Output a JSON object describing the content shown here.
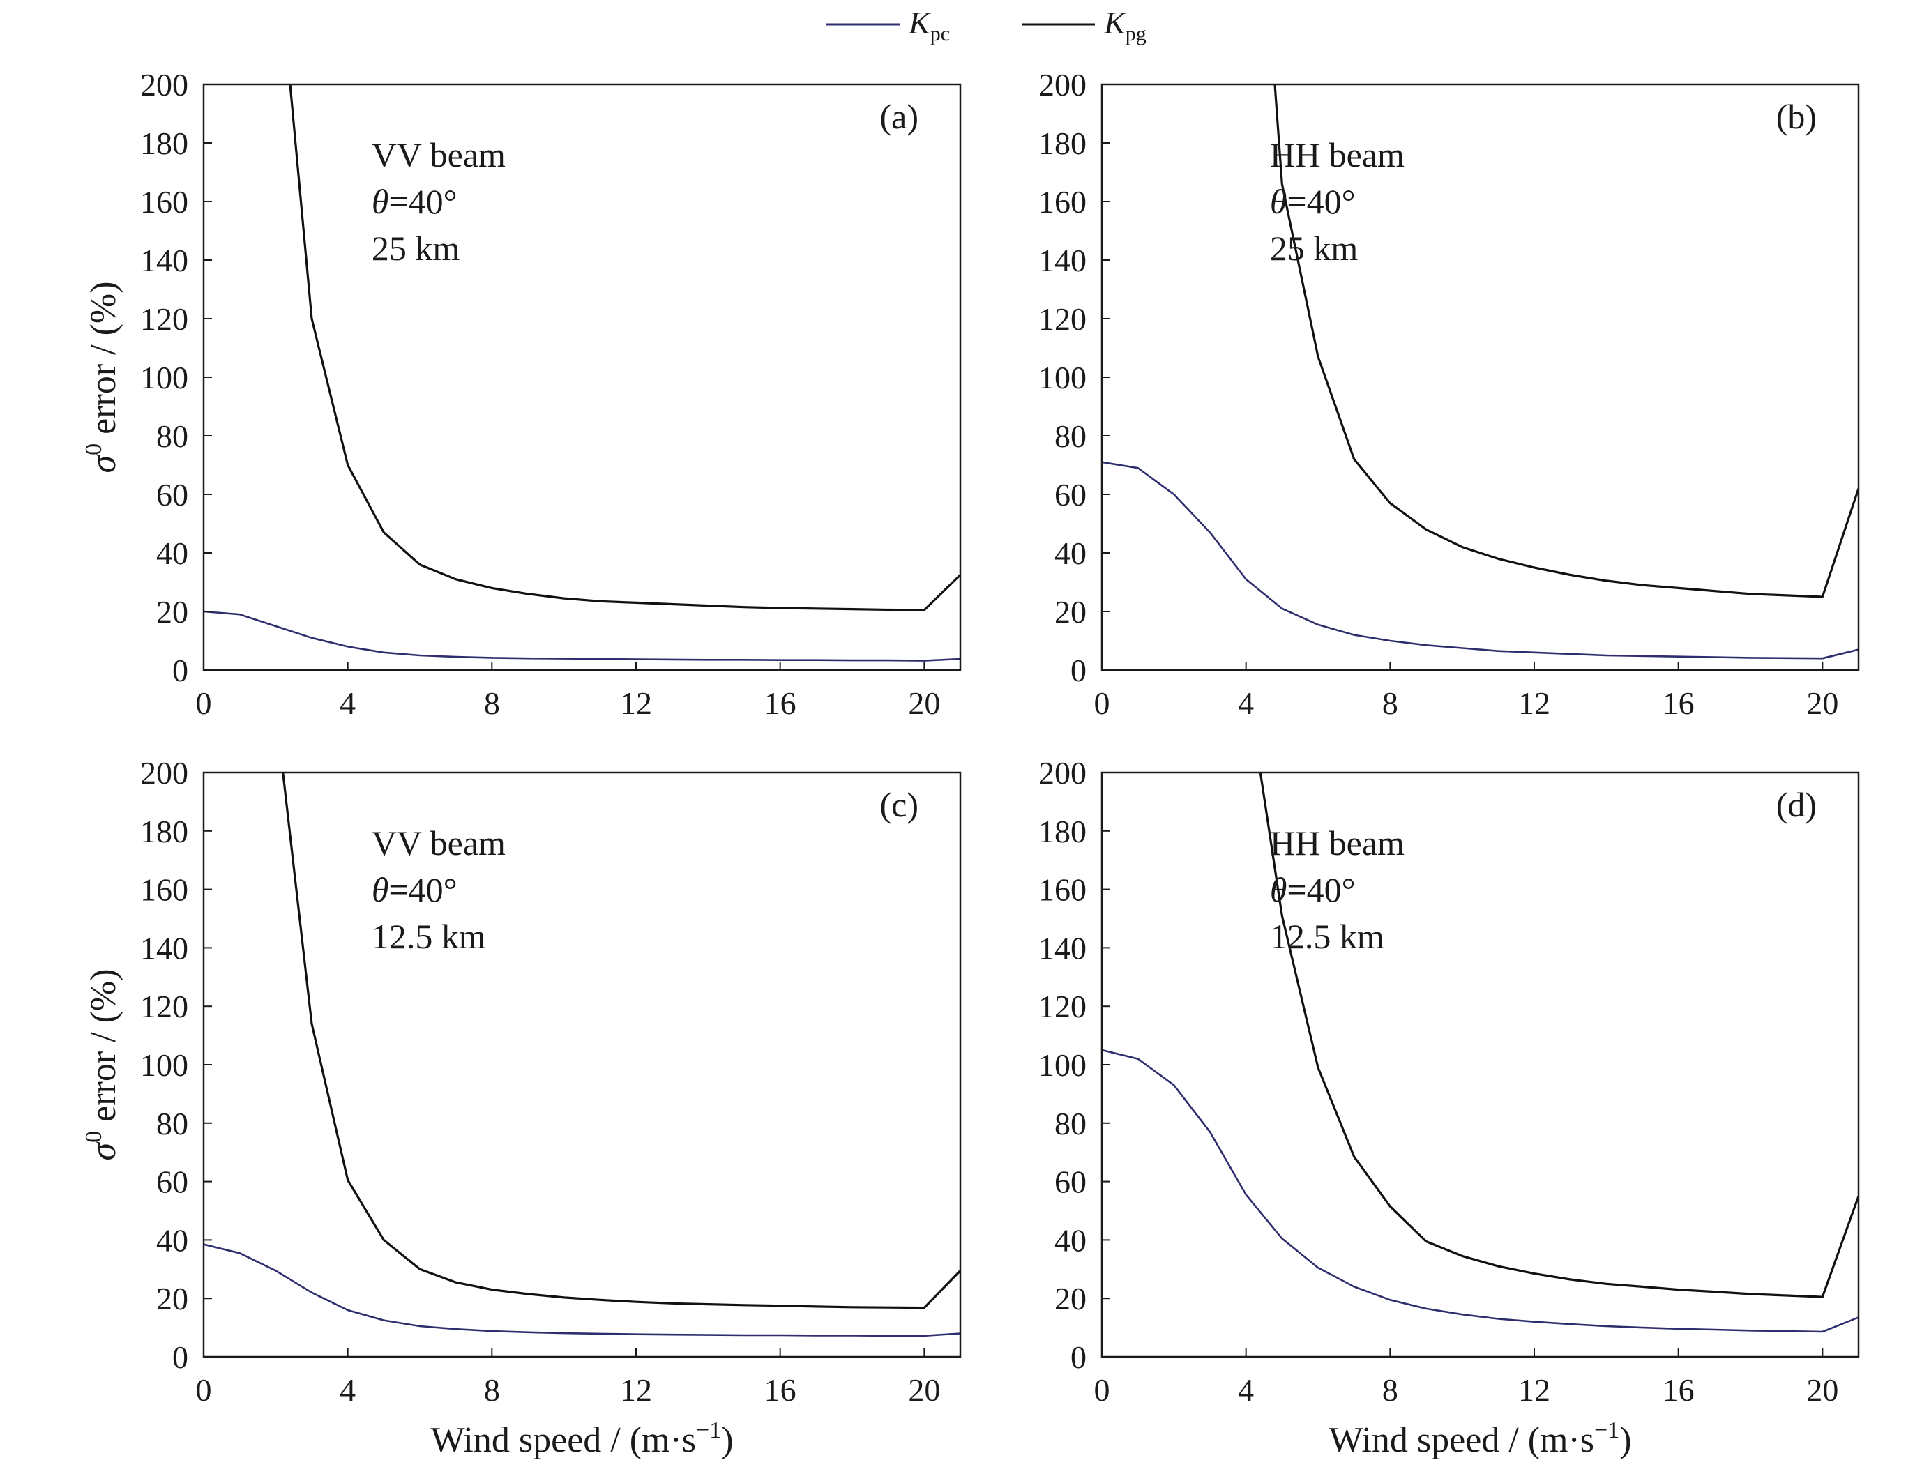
{
  "legend": [
    {
      "base": "K",
      "sub": "pc",
      "color": "#2e2e6e"
    },
    {
      "base": "K",
      "sub": "pg",
      "color": "#111111"
    }
  ],
  "axis_text": {
    "ylabel_sigma": "σ",
    "ylabel_sup": "0",
    "ylabel_rest": " error / (%)",
    "xlabel_main": "Wind speed / (m·s",
    "xlabel_sup": "−1",
    "xlabel_close": ")"
  },
  "chart_data": [
    {
      "type": "line",
      "panel_label": "(a)",
      "annotation": [
        "VV beam",
        "θ=40°",
        "25 km"
      ],
      "xlabel": "",
      "ylabel": "σ0 error / (%)",
      "xlim": [
        0,
        21
      ],
      "ylim": [
        0,
        200
      ],
      "xticks": [
        0,
        4,
        8,
        12,
        16,
        20
      ],
      "yticks": [
        0,
        20,
        40,
        60,
        80,
        100,
        120,
        140,
        160,
        180,
        200
      ],
      "series": [
        {
          "name": "Kpc",
          "x": [
            0,
            1,
            2,
            3,
            4,
            5,
            6,
            7,
            8,
            9,
            10,
            11,
            12,
            13,
            14,
            15,
            16,
            17,
            18,
            19,
            20,
            21
          ],
          "y": [
            20,
            19,
            15,
            11,
            8,
            6,
            5,
            4.5,
            4.2,
            4,
            3.9,
            3.8,
            3.7,
            3.6,
            3.5,
            3.5,
            3.4,
            3.4,
            3.3,
            3.3,
            3.2,
            3.8
          ]
        },
        {
          "name": "Kpg",
          "x": [
            2.4,
            3,
            4,
            5,
            6,
            7,
            8,
            9,
            10,
            11,
            12,
            13,
            14,
            15,
            16,
            17,
            18,
            19,
            20,
            21
          ],
          "y": [
            200,
            120,
            70,
            47,
            36,
            31,
            28,
            26,
            24.5,
            23.5,
            23,
            22.5,
            22,
            21.5,
            21.2,
            21,
            20.8,
            20.6,
            20.5,
            32.5
          ]
        }
      ]
    },
    {
      "type": "line",
      "panel_label": "(b)",
      "annotation": [
        "HH beam",
        "θ=40°",
        "25 km"
      ],
      "xlabel": "",
      "ylabel": "",
      "xlim": [
        0,
        21
      ],
      "ylim": [
        0,
        200
      ],
      "xticks": [
        0,
        4,
        8,
        12,
        16,
        20
      ],
      "yticks": [
        0,
        20,
        40,
        60,
        80,
        100,
        120,
        140,
        160,
        180,
        200
      ],
      "series": [
        {
          "name": "Kpc",
          "x": [
            0,
            1,
            2,
            3,
            4,
            5,
            6,
            7,
            8,
            9,
            10,
            11,
            12,
            13,
            14,
            15,
            16,
            17,
            18,
            19,
            20,
            21
          ],
          "y": [
            71,
            69,
            60,
            47,
            31,
            21,
            15.5,
            12,
            10,
            8.5,
            7.5,
            6.5,
            6,
            5.5,
            5,
            4.8,
            4.6,
            4.4,
            4.2,
            4.1,
            4,
            7
          ]
        },
        {
          "name": "Kpg",
          "x": [
            4.8,
            5,
            6,
            7,
            8,
            9,
            10,
            11,
            12,
            13,
            14,
            15,
            16,
            17,
            18,
            19,
            20,
            21
          ],
          "y": [
            200,
            166,
            107,
            72,
            57,
            48,
            42,
            38,
            35,
            32.5,
            30.5,
            29,
            28,
            27,
            26,
            25.5,
            25,
            62
          ]
        }
      ]
    },
    {
      "type": "line",
      "panel_label": "(c)",
      "annotation": [
        "VV beam",
        "θ=40°",
        "12.5 km"
      ],
      "xlabel": "Wind speed / (m·s−1)",
      "ylabel": "σ0 error / (%)",
      "xlim": [
        0,
        21
      ],
      "ylim": [
        0,
        200
      ],
      "xticks": [
        0,
        4,
        8,
        12,
        16,
        20
      ],
      "yticks": [
        0,
        20,
        40,
        60,
        80,
        100,
        120,
        140,
        160,
        180,
        200
      ],
      "series": [
        {
          "name": "Kpc",
          "x": [
            0,
            1,
            2,
            3,
            4,
            5,
            6,
            7,
            8,
            9,
            10,
            11,
            12,
            13,
            14,
            15,
            16,
            17,
            18,
            19,
            20,
            21
          ],
          "y": [
            38.5,
            35.5,
            29.5,
            22,
            16,
            12.5,
            10.5,
            9.5,
            8.8,
            8.4,
            8.1,
            7.9,
            7.7,
            7.6,
            7.5,
            7.4,
            7.4,
            7.3,
            7.3,
            7.2,
            7.2,
            8
          ]
        },
        {
          "name": "Kpg",
          "x": [
            2.2,
            3,
            4,
            5,
            6,
            7,
            8,
            9,
            10,
            11,
            12,
            13,
            14,
            15,
            16,
            17,
            18,
            19,
            20,
            21
          ],
          "y": [
            200,
            114,
            60.5,
            40,
            30,
            25.5,
            23,
            21.5,
            20.3,
            19.5,
            18.8,
            18.3,
            18,
            17.7,
            17.5,
            17.2,
            17,
            16.9,
            16.8,
            29.5
          ]
        }
      ]
    },
    {
      "type": "line",
      "panel_label": "(d)",
      "annotation": [
        "HH beam",
        "θ=40°",
        "12.5 km"
      ],
      "xlabel": "Wind speed / (m·s−1)",
      "ylabel": "",
      "xlim": [
        0,
        21
      ],
      "ylim": [
        0,
        200
      ],
      "xticks": [
        0,
        4,
        8,
        12,
        16,
        20
      ],
      "yticks": [
        0,
        20,
        40,
        60,
        80,
        100,
        120,
        140,
        160,
        180,
        200
      ],
      "series": [
        {
          "name": "Kpc",
          "x": [
            0,
            1,
            2,
            3,
            4,
            5,
            6,
            7,
            8,
            9,
            10,
            11,
            12,
            13,
            14,
            15,
            16,
            17,
            18,
            19,
            20,
            21
          ],
          "y": [
            105,
            102,
            93,
            77,
            55.5,
            40.5,
            30.5,
            24,
            19.5,
            16.5,
            14.5,
            13,
            12,
            11.2,
            10.5,
            10,
            9.6,
            9.3,
            9,
            8.8,
            8.6,
            13.5
          ]
        },
        {
          "name": "Kpg",
          "x": [
            4.4,
            5,
            6,
            7,
            8,
            9,
            10,
            11,
            12,
            13,
            14,
            15,
            16,
            17,
            18,
            19,
            20,
            21
          ],
          "y": [
            200,
            151,
            99,
            68.5,
            51.5,
            39.5,
            34.5,
            31,
            28.5,
            26.5,
            25,
            24,
            23,
            22.3,
            21.5,
            21,
            20.5,
            55
          ]
        }
      ]
    }
  ]
}
